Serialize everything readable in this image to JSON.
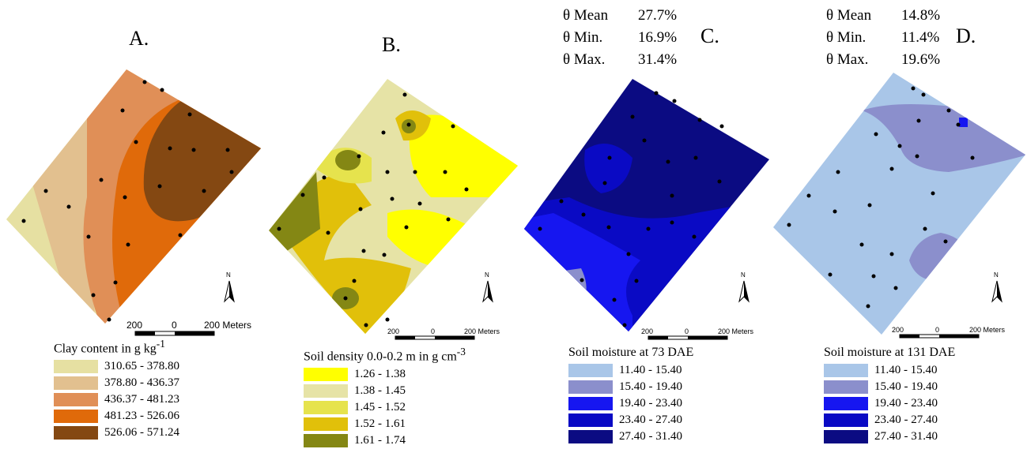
{
  "panels": [
    {
      "letter": "A.",
      "legend_title": "Clay content in g kg",
      "legend_title_sup": "-1",
      "classes": [
        {
          "label": "310.65 - 378.80",
          "color": "#e6e0a2"
        },
        {
          "label": "378.80 - 436.37",
          "color": "#e2c08f"
        },
        {
          "label": "436.37 - 481.23",
          "color": "#e08f57"
        },
        {
          "label": "481.23 - 526.06",
          "color": "#e06a0a"
        },
        {
          "label": "526.06 - 571.24",
          "color": "#844812"
        }
      ],
      "scale": {
        "left": "200",
        "mid": "0",
        "right": "200 Meters"
      }
    },
    {
      "letter": "B.",
      "legend_title": "Soil density 0.0-0.2 m in g cm",
      "legend_title_sup": "-3",
      "classes": [
        {
          "label": "1.26 - 1.38",
          "color": "#ffff00"
        },
        {
          "label": "1.38 - 1.45",
          "color": "#e6e3a6"
        },
        {
          "label": "1.45 - 1.52",
          "color": "#e6e34d"
        },
        {
          "label": "1.52 - 1.61",
          "color": "#e1c00a"
        },
        {
          "label": "1.61 - 1.74",
          "color": "#848714"
        }
      ],
      "scale": {
        "left": "200",
        "mid": "0",
        "right": "200 Meters"
      }
    },
    {
      "letter": "C.",
      "stats": [
        {
          "key": "θ Mean",
          "value": "27.7%"
        },
        {
          "key": "θ Min.",
          "value": "16.9%"
        },
        {
          "key": "θ Max.",
          "value": "31.4%"
        }
      ],
      "legend_title": "Soil moisture at 73 DAE",
      "classes": [
        {
          "label": "11.40 - 15.40",
          "color": "#a9c6e8"
        },
        {
          "label": "15.40 - 19.40",
          "color": "#8b8fcc"
        },
        {
          "label": "19.40 - 23.40",
          "color": "#1616f0"
        },
        {
          "label": "23.40 - 27.40",
          "color": "#0a0ac4"
        },
        {
          "label": "27.40 - 31.40",
          "color": "#0b0b82"
        }
      ],
      "scale": {
        "left": "200",
        "mid": "0",
        "right": "200 Meters"
      }
    },
    {
      "letter": "D.",
      "stats": [
        {
          "key": "θ Mean",
          "value": "14.8%"
        },
        {
          "key": "θ Min.",
          "value": "11.4%"
        },
        {
          "key": "θ Max.",
          "value": "19.6%"
        }
      ],
      "legend_title": "Soil moisture at 131 DAE",
      "classes": [
        {
          "label": "11.40 - 15.40",
          "color": "#a9c6e8"
        },
        {
          "label": "15.40 - 19.40",
          "color": "#8b8fcc"
        },
        {
          "label": "19.40 - 23.40",
          "color": "#1616f0"
        },
        {
          "label": "23.40 - 27.40",
          "color": "#0a0ac4"
        },
        {
          "label": "27.40 - 31.40",
          "color": "#0b0b82"
        }
      ],
      "scale": {
        "left": "200",
        "mid": "0",
        "right": "200 Meters"
      }
    }
  ],
  "north_label": "N"
}
